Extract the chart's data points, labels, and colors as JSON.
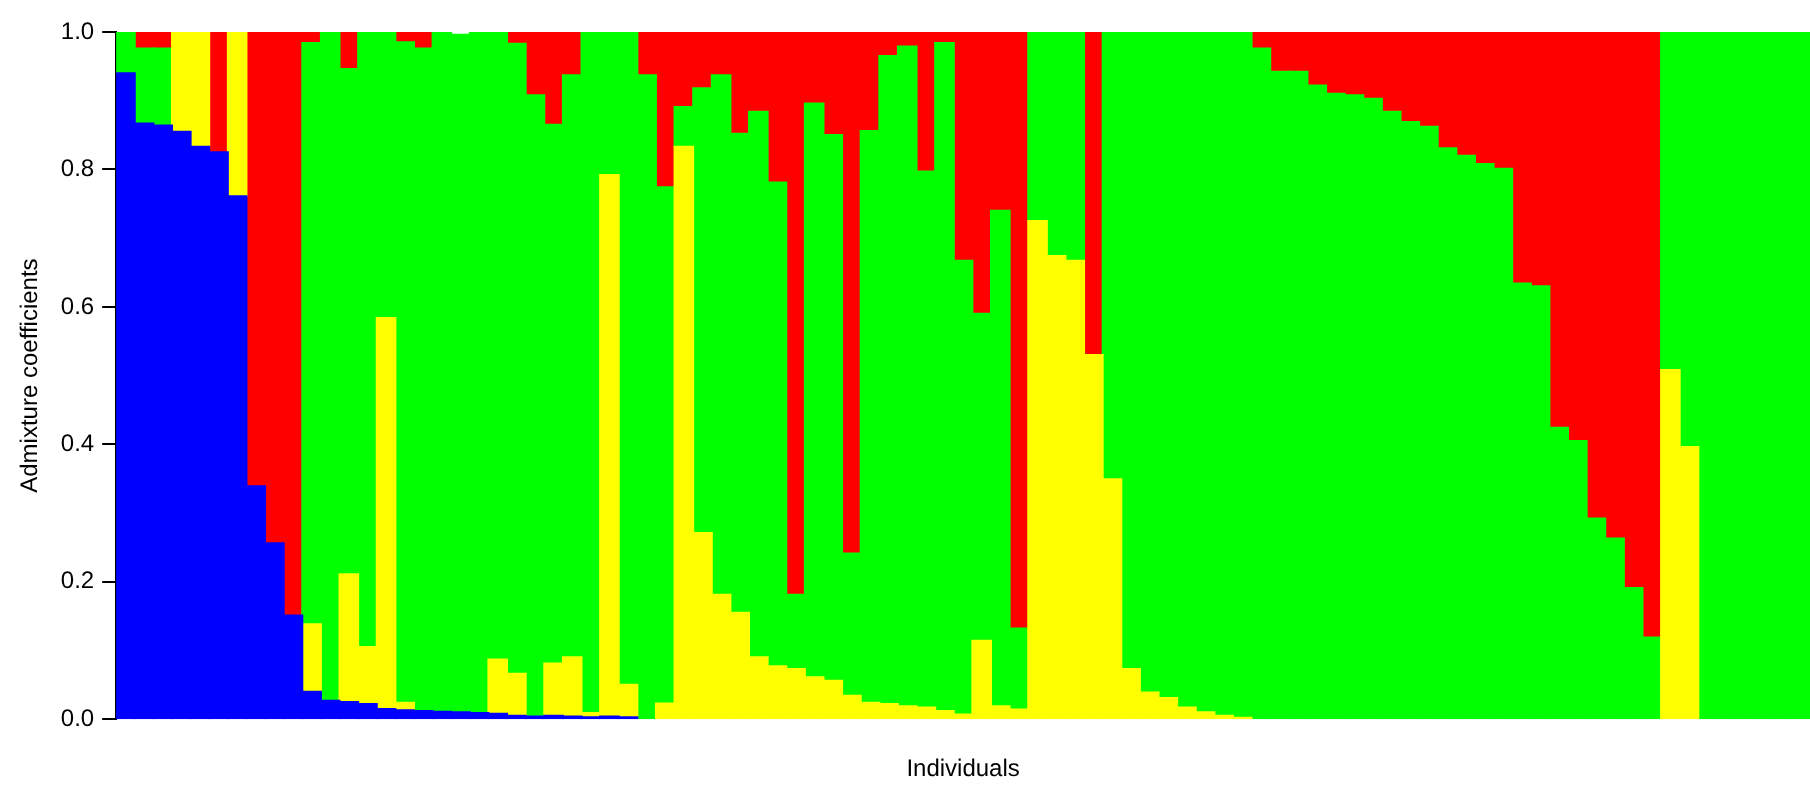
{
  "chart_data": {
    "type": "bar",
    "stacked": true,
    "xlabel": "Individuals",
    "ylabel": "Admixture coefficients",
    "categories": [
      null,
      null,
      null,
      null,
      null,
      null,
      null,
      null,
      null,
      null,
      null,
      null,
      null,
      null,
      null,
      null,
      null,
      null,
      null,
      null,
      null,
      null,
      null,
      null,
      null,
      null,
      null,
      null,
      null,
      null,
      null,
      null,
      null,
      null,
      null,
      null,
      null,
      null,
      null,
      null,
      null,
      null,
      null,
      null,
      null,
      null,
      null,
      null,
      null,
      null,
      null,
      null,
      null,
      null,
      null,
      null,
      null,
      null,
      null,
      null,
      null,
      null,
      null,
      null,
      null,
      null,
      null,
      null,
      null,
      null,
      null,
      null,
      null,
      null,
      null,
      null,
      null,
      null,
      null,
      null,
      null,
      null,
      null,
      null,
      null,
      null,
      null,
      null,
      null,
      null,
      null
    ],
    "ylim": [
      0,
      1
    ],
    "yticks": [
      {
        "value": 0,
        "label": "0.0"
      },
      {
        "value": 0.2,
        "label": "0.2"
      },
      {
        "value": 0.4,
        "label": "0.4"
      },
      {
        "value": 0.6,
        "label": "0.6"
      },
      {
        "value": 0.8,
        "label": "0.8"
      },
      {
        "value": 1,
        "label": "1.0"
      }
    ],
    "series": [
      {
        "color": "#0000ff",
        "values": [
          0.94,
          0.867,
          0.864,
          0.855,
          0.833,
          0.825,
          0.761,
          0.339,
          0.256,
          0.151,
          0.04,
          0.027,
          0.025,
          0.022,
          0.015,
          0.013,
          0.012,
          0.011,
          0.01,
          0.009,
          0.008,
          0.005,
          0.004,
          0.005,
          0.004,
          0.003,
          0.004,
          0.003,
          0,
          0,
          0,
          0,
          0,
          0,
          0,
          0,
          0,
          0,
          0,
          0,
          0,
          0,
          0,
          0,
          0,
          0,
          0,
          0,
          0,
          0,
          0,
          0,
          0,
          0,
          0,
          0,
          0,
          0,
          0,
          0,
          0,
          0,
          0,
          0,
          0,
          0,
          0,
          0,
          0,
          0,
          0,
          0,
          0,
          0,
          0,
          0,
          0,
          0,
          0,
          0,
          0,
          0,
          0,
          0,
          0,
          0,
          0,
          0,
          0,
          0,
          0
        ]
      },
      {
        "color": "#ffff00",
        "values": [
          0,
          0,
          0,
          0.145,
          0.167,
          0,
          0.239,
          0,
          0,
          0,
          0.098,
          0,
          0.186,
          0.083,
          0.569,
          0.011,
          0,
          0,
          null,
          0,
          0.079,
          0.061,
          0,
          0.076,
          0.086,
          0.006,
          0.788,
          0.047,
          0,
          0.023,
          0.833,
          0.271,
          0.181,
          0.155,
          0.09,
          0.077,
          0.073,
          0.061,
          0.056,
          0.034,
          0.024,
          0.022,
          0.019,
          0.017,
          0.012,
          0.007,
          0.114,
          0.019,
          0.014,
          0.725,
          0.674,
          0.667,
          0.53,
          0.349,
          0.073,
          0.039,
          0.031,
          0.017,
          0.01,
          0.005,
          0.002,
          0,
          0,
          0,
          0,
          0,
          0,
          0,
          0,
          0,
          0,
          0,
          0,
          0,
          0,
          0,
          0,
          0,
          0,
          0,
          0,
          0,
          0,
          0.508,
          0.396,
          0,
          0,
          0,
          0,
          0,
          0
        ]
      },
      {
        "color": "#00ff00",
        "values": [
          0.06,
          0.109,
          0.112,
          0,
          0,
          0,
          0,
          0,
          0,
          0,
          0.846,
          0.974,
          0.735,
          0.895,
          0.416,
          0.961,
          0.964,
          0.99,
          0.986,
          0.99,
          0.913,
          0.917,
          0.904,
          0.784,
          0.847,
          0.99,
          0.208,
          0.949,
          0.937,
          0.751,
          0.058,
          0.647,
          0.756,
          0.697,
          0.794,
          0.704,
          0.108,
          0.835,
          0.794,
          0.207,
          0.832,
          0.943,
          0.96,
          0.78,
          0.972,
          0.66,
          0.476,
          0.721,
          0.118,
          0.275,
          0.326,
          0.333,
          0,
          0.651,
          0.927,
          0.961,
          0.969,
          0.983,
          0.99,
          0.995,
          0.998,
          0.976,
          0.942,
          0.942,
          0.922,
          0.91,
          0.908,
          0.903,
          0.884,
          0.869,
          0.862,
          0.831,
          0.82,
          0.808,
          0.801,
          0.634,
          0.63,
          0.424,
          0.405,
          0.292,
          0.263,
          0.191,
          0.119,
          0.492,
          0.604,
          1,
          1,
          1,
          1,
          1,
          1
        ]
      },
      {
        "color": "#ff0000",
        "values": [
          0,
          0.024,
          0.024,
          0,
          0,
          0.175,
          0,
          0.661,
          0.744,
          0.849,
          0.016,
          0,
          0.053,
          0,
          0,
          0.016,
          0.024,
          0,
          0,
          0,
          0,
          0.018,
          0.092,
          0.136,
          0.063,
          0,
          0,
          0,
          0.063,
          0.226,
          0.109,
          0.082,
          0.063,
          0.148,
          0.116,
          0.219,
          0.819,
          0.104,
          0.15,
          0.759,
          0.146,
          0.035,
          0.021,
          0.203,
          0.016,
          0.333,
          0.41,
          0.26,
          0.868,
          0,
          0,
          0,
          0.47,
          0,
          0,
          0,
          0,
          0,
          0,
          0,
          0,
          0.024,
          0.058,
          0.058,
          0.078,
          0.09,
          0.092,
          0.097,
          0.116,
          0.131,
          0.138,
          0.169,
          0.18,
          0.192,
          0.199,
          0.366,
          0.37,
          0.576,
          0.595,
          0.708,
          0.737,
          0.809,
          0.881,
          0,
          0,
          0,
          0,
          0,
          0,
          0,
          0
        ]
      }
    ]
  }
}
